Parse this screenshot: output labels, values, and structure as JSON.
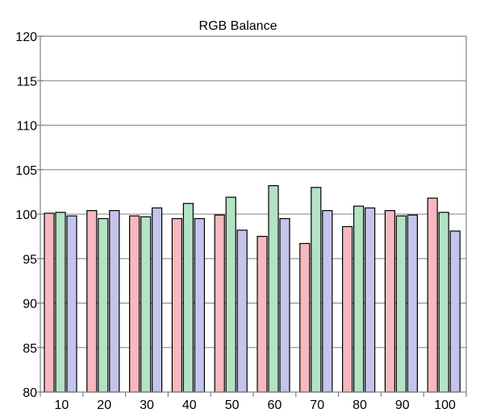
{
  "chart_data": {
    "type": "bar",
    "title": "RGB Balance",
    "xlabel": "",
    "ylabel": "",
    "ylim": [
      80,
      120
    ],
    "yticks": [
      80,
      85,
      90,
      95,
      100,
      105,
      110,
      115,
      120
    ],
    "grid": true,
    "legend": "none",
    "categories": [
      "10",
      "20",
      "30",
      "40",
      "50",
      "60",
      "70",
      "80",
      "90",
      "100"
    ],
    "series": [
      {
        "color": "#f7b8bf",
        "values": [
          100.1,
          100.4,
          99.8,
          99.5,
          99.9,
          97.5,
          96.7,
          98.6,
          100.4,
          101.8
        ]
      },
      {
        "color": "#b3e3c4",
        "values": [
          100.2,
          99.5,
          99.7,
          101.2,
          101.9,
          103.2,
          103.0,
          100.9,
          99.8,
          100.2
        ]
      },
      {
        "color": "#c4c4ec",
        "values": [
          99.8,
          100.4,
          100.7,
          99.5,
          98.2,
          99.5,
          100.4,
          100.7,
          99.9,
          98.1
        ]
      }
    ]
  }
}
